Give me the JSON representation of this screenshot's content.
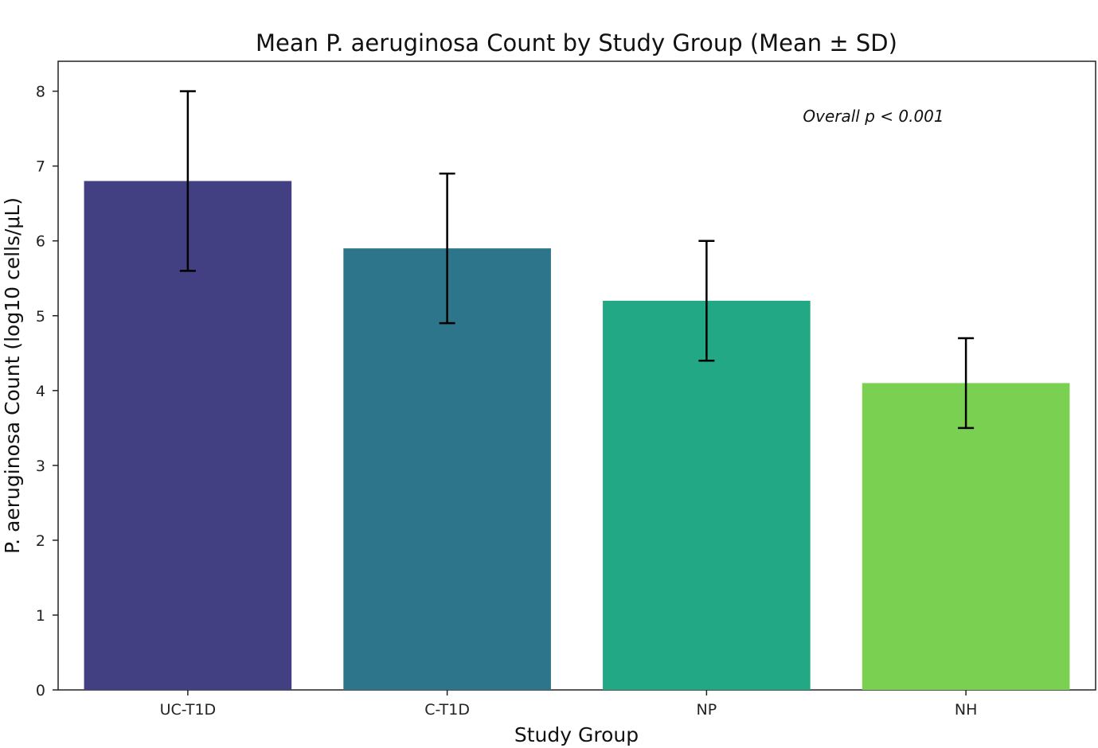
{
  "chart_data": {
    "type": "bar",
    "title": "Mean P. aeruginosa Count by Study Group (Mean ± SD)",
    "xlabel": "Study Group",
    "ylabel": "P. aeruginosa Count (log10 cells/μL)",
    "categories": [
      "UC-T1D",
      "C-T1D",
      "NP",
      "NH"
    ],
    "values": [
      6.8,
      5.9,
      5.2,
      4.1
    ],
    "errors": [
      1.2,
      1.0,
      0.8,
      0.6
    ],
    "colors": [
      "#423f83",
      "#2c758b",
      "#22a884",
      "#7ad151"
    ],
    "ylim": [
      0,
      8.4
    ],
    "yticks": [
      0,
      1,
      2,
      3,
      4,
      5,
      6,
      7,
      8
    ],
    "ytick_labels": [
      "0",
      "1",
      "2",
      "3",
      "4",
      "5",
      "6",
      "7",
      "8"
    ],
    "grid": false,
    "annotation": "Overall p < 0.001"
  }
}
